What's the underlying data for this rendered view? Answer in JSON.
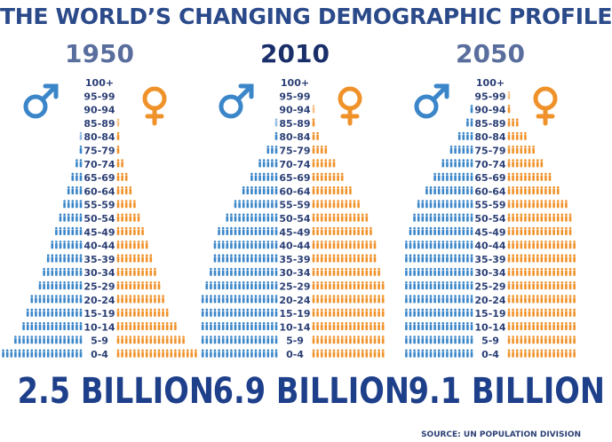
{
  "title": "THE WORLD’S CHANGING DEMOGRAPHIC PROFILE",
  "source": "SOURCE: UN POPULATION DIVISION",
  "colors": {
    "title": "#2b4a8a",
    "year": "#5a6e9e",
    "year_current": "#1a2f6a",
    "total": "#1e3f8a",
    "male": "#3b86c9",
    "female": "#f0922a",
    "label": "#2b3f75"
  },
  "icons": {
    "male": "male-symbol-icon",
    "female": "female-symbol-icon"
  },
  "chart_data": [
    {
      "type": "bar",
      "year": "1950",
      "total": "2.5 BILLION",
      "categories": [
        "100+",
        "95-99",
        "90-94",
        "85-89",
        "80-84",
        "75-79",
        "70-74",
        "65-69",
        "60-64",
        "55-59",
        "50-54",
        "45-49",
        "40-44",
        "35-39",
        "30-34",
        "25-29",
        "20-24",
        "15-19",
        "10-14",
        "5-9",
        "0-4"
      ],
      "series": [
        {
          "name": "♂",
          "values": [
            0,
            0,
            0,
            0,
            0.5,
            1,
            2,
            3,
            4,
            5,
            6,
            7,
            8,
            9,
            10,
            11,
            13,
            14,
            15,
            17,
            20
          ]
        },
        {
          "name": "♀",
          "values": [
            0,
            0,
            0,
            0.5,
            1,
            1,
            2,
            3,
            4,
            5,
            6,
            7,
            8,
            9,
            10,
            11,
            12,
            13,
            15,
            17,
            20
          ]
        }
      ]
    },
    {
      "type": "bar",
      "year": "2010",
      "total": "6.9 BILLION",
      "categories": [
        "100+",
        "95-99",
        "90-94",
        "85-89",
        "80-84",
        "75-79",
        "70-74",
        "65-69",
        "60-64",
        "55-59",
        "50-54",
        "45-49",
        "40-44",
        "35-39",
        "30-34",
        "25-29",
        "20-24",
        "15-19",
        "10-14",
        "5-9",
        "0-4"
      ],
      "series": [
        {
          "name": "♂",
          "values": [
            0,
            0,
            0,
            0.5,
            1,
            3,
            5,
            7,
            9,
            11,
            13,
            15,
            16,
            16,
            17,
            18,
            19,
            19,
            19,
            19,
            19
          ]
        },
        {
          "name": "♀",
          "values": [
            0,
            0,
            0.5,
            1,
            2,
            4,
            6,
            8,
            10,
            12,
            14,
            15,
            16,
            16,
            17,
            18,
            18,
            18,
            18,
            18,
            18
          ]
        }
      ]
    },
    {
      "type": "bar",
      "year": "2050",
      "total": "9.1 BILLION",
      "categories": [
        "100+",
        "95-99",
        "90-94",
        "85-89",
        "80-84",
        "75-79",
        "70-74",
        "65-69",
        "60-64",
        "55-59",
        "50-54",
        "45-49",
        "40-44",
        "35-39",
        "30-34",
        "25-29",
        "20-24",
        "15-19",
        "10-14",
        "5-9",
        "0-4"
      ],
      "series": [
        {
          "name": "♂",
          "values": [
            0,
            0,
            1,
            2,
            4,
            6,
            8,
            10,
            12,
            14,
            15,
            16,
            17,
            17,
            17,
            17,
            17,
            17,
            17,
            17,
            17
          ]
        },
        {
          "name": "♀",
          "values": [
            0,
            0.5,
            1,
            3,
            5,
            7,
            9,
            11,
            13,
            15,
            16,
            16,
            17,
            17,
            17,
            17,
            17,
            17,
            17,
            17,
            17
          ]
        }
      ]
    }
  ]
}
